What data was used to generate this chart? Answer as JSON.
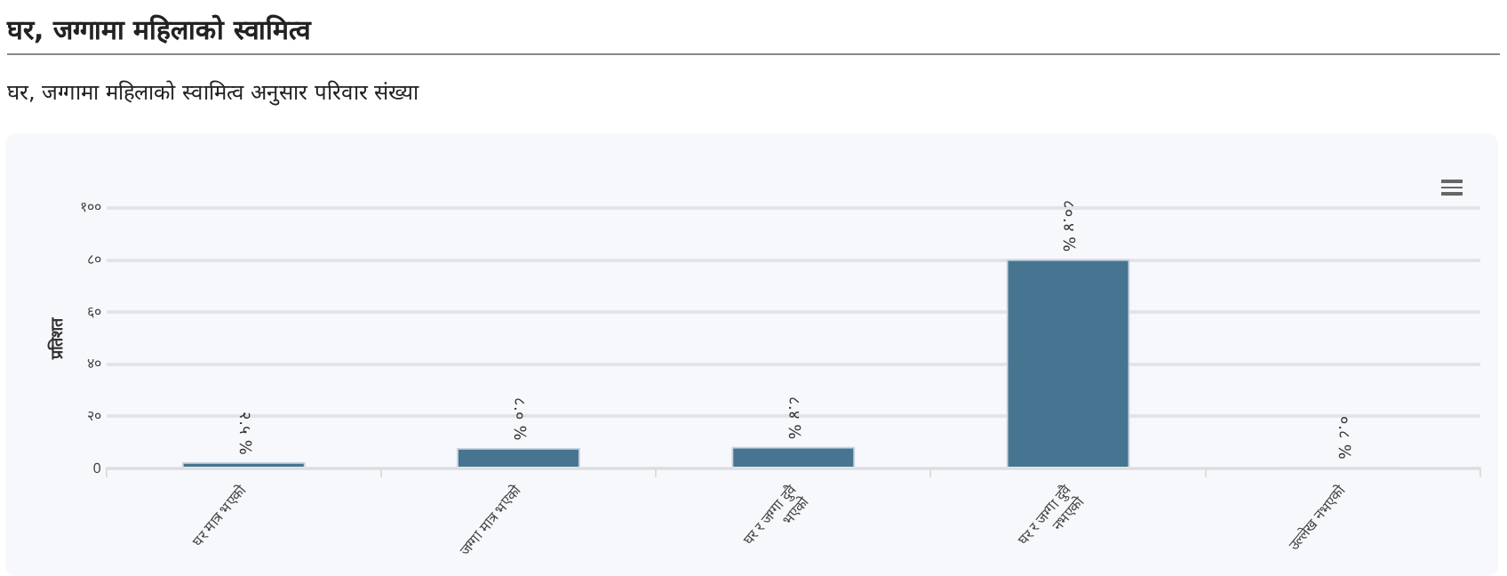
{
  "chart_data": {
    "type": "bar",
    "title": "घर, जग्गामा महिलाको स्वामित्व",
    "subtitle": "घर, जग्गामा महिलाको स्वामित्व अनुसार परिवार संख्या",
    "ylabel": "प्रतिशत",
    "categories": [
      "घर मात्र भएको",
      "जग्गा मात्र भएको",
      "घर र जग्गा दुवै भएको",
      "घर र जग्गा दुवै नभएको",
      "उल्लेख नभएको"
    ],
    "values": [
      2.5,
      8.0,
      8.4,
      80.4,
      0.8
    ],
    "value_labels": [
      "२.५ %",
      "८.० %",
      "८.४ %",
      "८०.४ %",
      "०.८ %"
    ],
    "color": "#467491",
    "ylim": [
      0,
      100
    ],
    "yticks": [
      {
        "value": 0,
        "label": "0"
      },
      {
        "value": 20,
        "label": "२०"
      },
      {
        "value": 40,
        "label": "४०"
      },
      {
        "value": 60,
        "label": "६०"
      },
      {
        "value": 80,
        "label": "८०"
      },
      {
        "value": 100,
        "label": "१००"
      }
    ],
    "grid": "y",
    "legend": false
  }
}
